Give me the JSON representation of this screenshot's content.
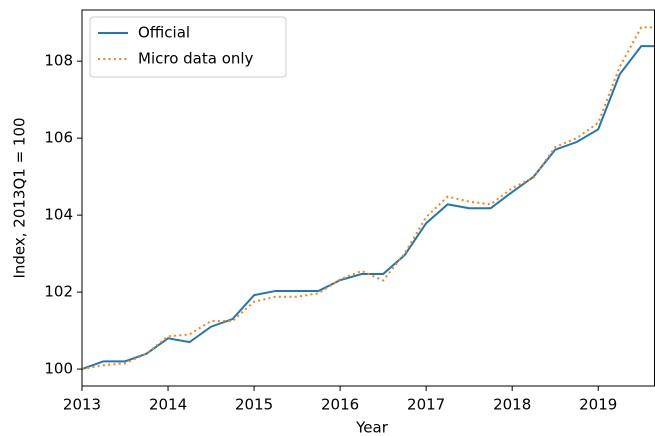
{
  "chart_data": {
    "type": "line",
    "x_label": "Year",
    "y_label": "Index, 2013Q1 = 100",
    "x": [
      2013,
      2013.25,
      2013.5,
      2013.75,
      2014,
      2014.25,
      2014.5,
      2014.75,
      2015,
      2015.25,
      2015.5,
      2015.75,
      2016,
      2016.25,
      2016.5,
      2016.75,
      2017,
      2017.25,
      2017.5,
      2017.75,
      2018,
      2018.25,
      2018.5,
      2018.75,
      2019,
      2019.25,
      2019.5,
      2019.75
    ],
    "series": [
      {
        "name": "Official",
        "color": "#1f77b4",
        "style": "solid",
        "values": [
          100.0,
          100.2,
          100.2,
          100.4,
          100.8,
          100.7,
          101.1,
          101.3,
          101.92,
          102.03,
          102.03,
          102.03,
          102.31,
          102.47,
          102.47,
          102.96,
          103.79,
          104.28,
          104.18,
          104.18,
          104.6,
          105.0,
          105.7,
          105.9,
          106.23,
          107.66,
          108.39,
          108.39
        ]
      },
      {
        "name": "Micro data only",
        "color": "#ff7f0e",
        "style": "dotted",
        "values": [
          100.0,
          100.1,
          100.15,
          100.4,
          100.85,
          100.9,
          101.25,
          101.25,
          101.75,
          101.88,
          101.88,
          101.97,
          102.33,
          102.55,
          102.3,
          103.0,
          103.95,
          104.48,
          104.35,
          104.28,
          104.7,
          104.98,
          105.77,
          106.0,
          106.4,
          107.85,
          108.88,
          108.88
        ]
      }
    ],
    "xlim": [
      2013,
      2019.66
    ],
    "xticks": [
      2013,
      2014,
      2015,
      2016,
      2017,
      2018,
      2019
    ],
    "ylim": [
      99.56,
      109.33
    ],
    "yticks": [
      100,
      102,
      104,
      106,
      108
    ],
    "legend": "upper left",
    "grid": false
  }
}
